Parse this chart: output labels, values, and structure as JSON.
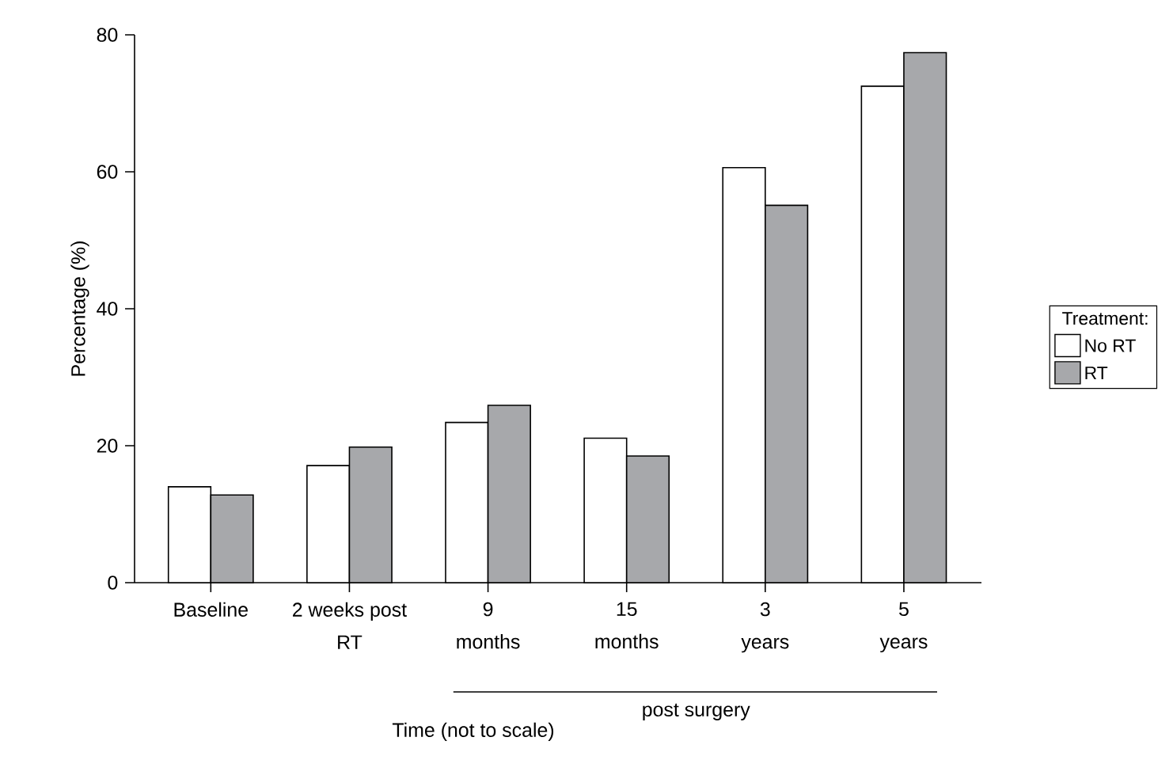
{
  "chart_data": {
    "type": "bar",
    "xlabel": "Time (not to scale)",
    "ylabel": "Percentage (%)",
    "legend_title": "Treatment:",
    "categories": [
      "Baseline",
      "2 weeks post RT",
      "9 months",
      "15 months",
      "3 years",
      "5 years"
    ],
    "series": [
      {
        "name": "No RT",
        "color": "#ffffff",
        "values": [
          14.0,
          17.1,
          23.4,
          21.1,
          60.6,
          72.5
        ]
      },
      {
        "name": "RT",
        "color": "#a7a8ab",
        "values": [
          12.8,
          19.8,
          25.9,
          18.5,
          55.1,
          77.4
        ]
      }
    ],
    "ylim": [
      0,
      80
    ],
    "yticks": [
      0,
      20,
      40,
      60,
      80
    ],
    "annotations": [
      "post surgery"
    ],
    "legend": "right"
  }
}
